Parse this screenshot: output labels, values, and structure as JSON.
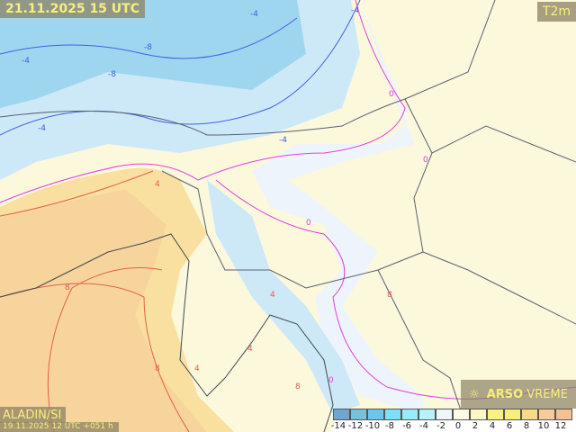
{
  "title": "21.11.2025 15 UTC",
  "parameter": "T2m",
  "model": "ALADIN/SI",
  "run": "19.11.2025 12 UTC +051 h",
  "brand": {
    "bold": "ARSO",
    "light": "VREME",
    "icon": "weather-logo-icon"
  },
  "legend": {
    "ticks": [
      "-14",
      "-12",
      "-10",
      "-8",
      "-6",
      "-4",
      "-2",
      "0",
      "2",
      "4",
      "6",
      "8",
      "10",
      "12"
    ],
    "colors": [
      "#6fa6cf",
      "#75c2dc",
      "#6cc6ec",
      "#7ce0f6",
      "#98ecfa",
      "#b6f2fc",
      "#eef6fc",
      "#fdfde6",
      "#fcf8c6",
      "#f9f282",
      "#f8ee7a",
      "#f8da86",
      "#f8cc9a",
      "#f6c090"
    ]
  },
  "contour_labels": [
    "-4",
    "-4",
    "-8",
    "-8",
    "-4",
    "-4",
    "0",
    "0",
    "-4",
    "4",
    "8",
    "4",
    "8",
    "8",
    "4",
    "0",
    "8",
    "4",
    "0"
  ],
  "colors": {
    "land_warm": "#fbf3b8",
    "sea": "#f8dc9a",
    "cold": "#b6e4f6",
    "isoline_zero": "#e040e0",
    "isoline_warm": "#e06050",
    "isoline_cold": "#4060e0",
    "border": "#5a6070"
  }
}
